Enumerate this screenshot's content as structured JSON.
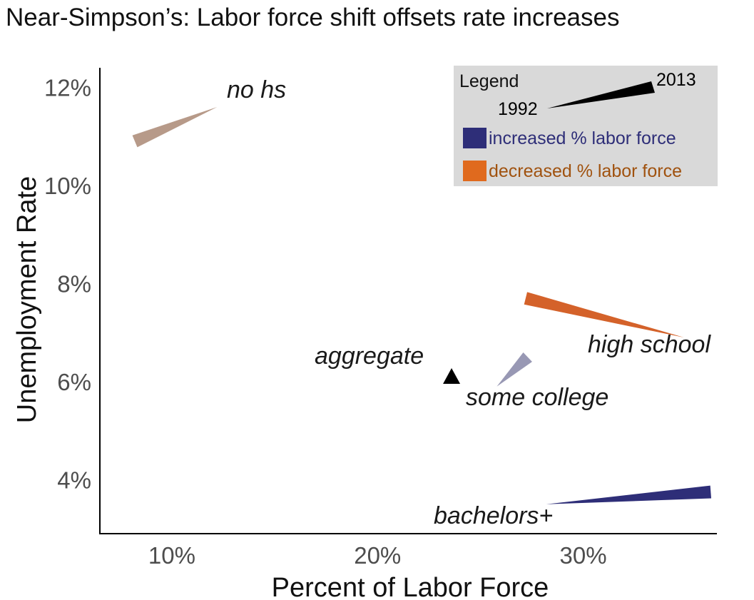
{
  "chart_data": {
    "type": "scatter",
    "title": "Near-Simpson’s: Labor force shift offsets rate increases",
    "xlabel": "Percent of Labor Force",
    "ylabel": "Unemployment Rate",
    "xlim": [
      6.5,
      36.5
    ],
    "ylim": [
      2.9,
      12.4
    ],
    "x_ticks": [
      {
        "value": 10,
        "label": "10%"
      },
      {
        "value": 20,
        "label": "20%"
      },
      {
        "value": 30,
        "label": "30%"
      }
    ],
    "y_ticks": [
      {
        "value": 4,
        "label": "4%"
      },
      {
        "value": 6,
        "label": "6%"
      },
      {
        "value": 8,
        "label": "8%"
      },
      {
        "value": 10,
        "label": "10%"
      },
      {
        "value": 12,
        "label": "12%"
      }
    ],
    "grid": false,
    "legend_position": "top-right",
    "legend": {
      "title": "Legend",
      "start_year": "1992",
      "end_year": "2013",
      "increased_label": "increased % labor force",
      "decreased_label": "decreased % labor force",
      "increased_color": "#2e2e78",
      "decreased_color": "#e06a1e",
      "key_color": "#000000"
    },
    "series": [
      {
        "name": "no hs",
        "x_1992": 12.2,
        "y_1992": 11.6,
        "x_2013": 8.2,
        "y_2013": 10.9,
        "direction": "decreased",
        "color": "#b79a89"
      },
      {
        "name": "high school",
        "x_1992": 34.9,
        "y_1992": 6.9,
        "x_2013": 27.2,
        "y_2013": 7.7,
        "direction": "decreased",
        "color": "#d4622a"
      },
      {
        "name": "some college",
        "x_1992": 25.8,
        "y_1992": 5.9,
        "x_2013": 27.3,
        "y_2013": 6.5,
        "direction": "increased",
        "color": "#9898b4"
      },
      {
        "name": "bachelors+",
        "x_1992": 28.2,
        "y_1992": 3.5,
        "x_2013": 36.2,
        "y_2013": 3.75,
        "direction": "increased",
        "color": "#2e2e78"
      },
      {
        "name": "aggregate",
        "x_1992": 23.6,
        "y_1992": 6.1,
        "x_2013": 23.6,
        "y_2013": 6.1,
        "direction": "none",
        "color": "#000000"
      }
    ]
  }
}
